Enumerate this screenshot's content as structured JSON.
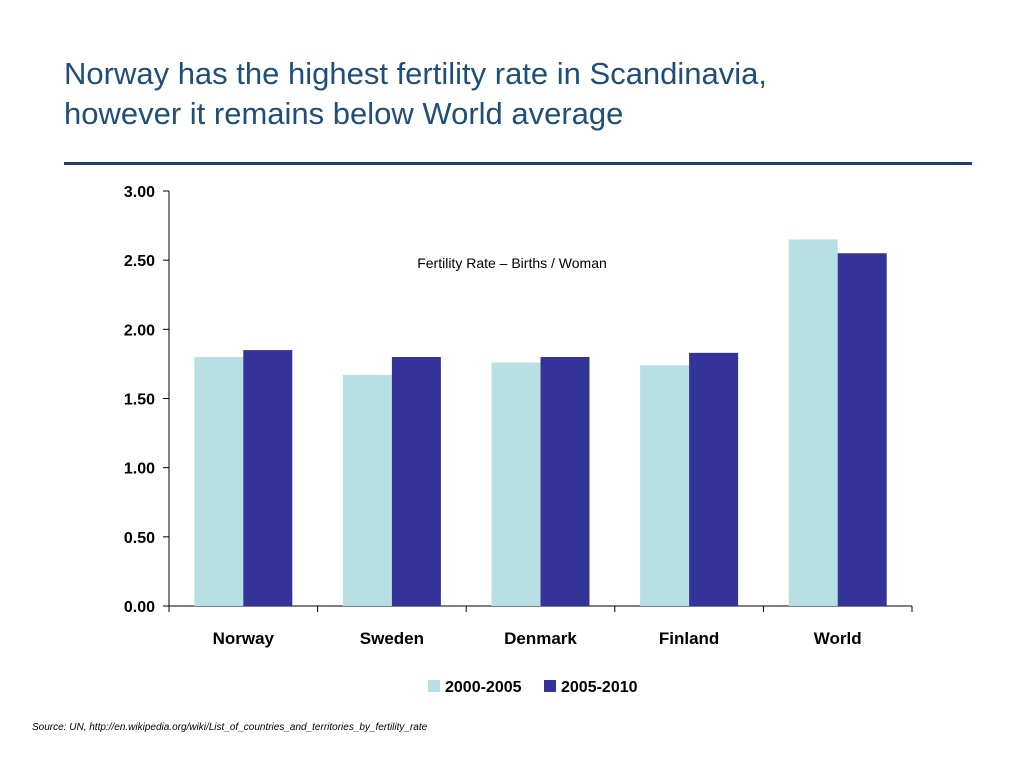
{
  "slide": {
    "title_line1": "Norway has the highest fertility rate in Scandinavia,",
    "title_line2": "however it remains below World average",
    "source": "Source: UN, http://en.wikipedia.org/wiki/List_of_countries_and_territories_by_fertility_rate"
  },
  "chart_data": {
    "type": "bar",
    "annotation": "Fertility Rate – Births / Woman",
    "categories": [
      "Norway",
      "Sweden",
      "Denmark",
      "Finland",
      "World"
    ],
    "series": [
      {
        "name": "2000-2005",
        "values": [
          1.8,
          1.67,
          1.76,
          1.74,
          2.65
        ],
        "color": "#b8e0e4"
      },
      {
        "name": "2005-2010",
        "values": [
          1.85,
          1.8,
          1.8,
          1.83,
          2.55
        ],
        "color": "#333399"
      }
    ],
    "ylim": [
      0,
      3
    ],
    "yticks": [
      "0.00",
      "0.50",
      "1.00",
      "1.50",
      "2.00",
      "2.50",
      "3.00"
    ],
    "grid": false,
    "legend": "bottom"
  }
}
